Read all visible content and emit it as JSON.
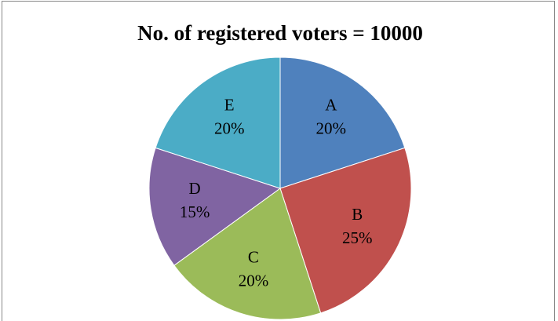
{
  "chart_data": {
    "type": "pie",
    "title": "No. of registered voters = 10000",
    "categories": [
      "A",
      "B",
      "C",
      "D",
      "E"
    ],
    "values": [
      20,
      25,
      20,
      15,
      20
    ],
    "value_labels": [
      "20%",
      "25%",
      "20%",
      "15%",
      "20%"
    ],
    "colors": [
      "#4f81bd",
      "#c0504d",
      "#9bbb59",
      "#8064a2",
      "#4bacc6"
    ]
  }
}
